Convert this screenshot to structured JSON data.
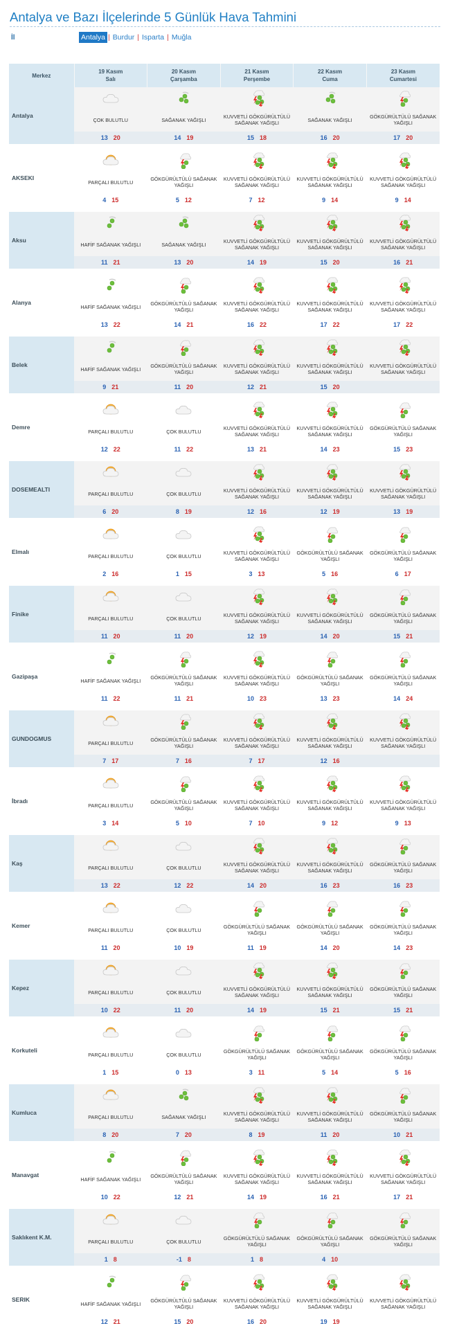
{
  "page_title": "Antalya ve Bazı İlçelerinde 5 Günlük Hava Tahmini",
  "il_label": "İl",
  "provinces": [
    "Antalya",
    "Burdur",
    "Isparta",
    "Muğla"
  ],
  "active_province": "Antalya",
  "table": {
    "merkez_header": "Merkez",
    "days": [
      {
        "date": "19 Kasım",
        "weekday": "Salı"
      },
      {
        "date": "20 Kasım",
        "weekday": "Çarşamba"
      },
      {
        "date": "21 Kasım",
        "weekday": "Perşembe"
      },
      {
        "date": "22 Kasım",
        "weekday": "Cuma"
      },
      {
        "date": "23 Kasım",
        "weekday": "Cumartesi"
      }
    ],
    "rows": [
      {
        "city": "Antalya",
        "forecast": [
          {
            "icon": "cloud-icon",
            "desc": "ÇOK BULUTLU",
            "low": "13",
            "high": "20"
          },
          {
            "icon": "shower-icon",
            "desc": "SAĞANAK YAĞIŞLI",
            "low": "14",
            "high": "19"
          },
          {
            "icon": "heavy-thunder-shower-icon",
            "desc": "KUVVETLİ GÖKGÜRÜLTÜLÜ SAĞANAK YAĞIŞLI",
            "low": "15",
            "high": "18"
          },
          {
            "icon": "shower-icon",
            "desc": "SAĞANAK YAĞIŞLI",
            "low": "16",
            "high": "20"
          },
          {
            "icon": "thunder-shower-icon",
            "desc": "GÖKGÜRÜLTÜLÜ SAĞANAK YAĞIŞLI",
            "low": "17",
            "high": "20"
          }
        ]
      },
      {
        "city": "AKSEKI",
        "forecast": [
          {
            "icon": "partly-cloudy-icon",
            "desc": "PARÇALI BULUTLU",
            "low": "4",
            "high": "15"
          },
          {
            "icon": "thunder-shower-icon",
            "desc": "GÖKGÜRÜLTÜLÜ SAĞANAK YAĞIŞLI",
            "low": "5",
            "high": "12"
          },
          {
            "icon": "heavy-thunder-shower-icon",
            "desc": "KUVVETLİ GÖKGÜRÜLTÜLÜ SAĞANAK YAĞIŞLI",
            "low": "7",
            "high": "12"
          },
          {
            "icon": "heavy-thunder-shower-icon",
            "desc": "KUVVETLİ GÖKGÜRÜLTÜLÜ SAĞANAK YAĞIŞLI",
            "low": "9",
            "high": "14"
          },
          {
            "icon": "heavy-thunder-shower-icon",
            "desc": "KUVVETLİ GÖKGÜRÜLTÜLÜ SAĞANAK YAĞIŞLI",
            "low": "9",
            "high": "14"
          }
        ]
      },
      {
        "city": "Aksu",
        "forecast": [
          {
            "icon": "light-shower-icon",
            "desc": "HAFİF SAĞANAK YAĞIŞLI",
            "low": "11",
            "high": "21"
          },
          {
            "icon": "shower-icon",
            "desc": "SAĞANAK YAĞIŞLI",
            "low": "13",
            "high": "20"
          },
          {
            "icon": "heavy-thunder-shower-icon",
            "desc": "KUVVETLİ GÖKGÜRÜLTÜLÜ SAĞANAK YAĞIŞLI",
            "low": "14",
            "high": "19"
          },
          {
            "icon": "heavy-thunder-shower-icon",
            "desc": "KUVVETLİ GÖKGÜRÜLTÜLÜ SAĞANAK YAĞIŞLI",
            "low": "15",
            "high": "20"
          },
          {
            "icon": "heavy-thunder-shower-icon",
            "desc": "KUVVETLİ GÖKGÜRÜLTÜLÜ SAĞANAK YAĞIŞLI",
            "low": "16",
            "high": "21"
          }
        ]
      },
      {
        "city": "Alanya",
        "forecast": [
          {
            "icon": "light-shower-icon",
            "desc": "HAFİF SAĞANAK YAĞIŞLI",
            "low": "13",
            "high": "22"
          },
          {
            "icon": "thunder-shower-icon",
            "desc": "GÖKGÜRÜLTÜLÜ SAĞANAK YAĞIŞLI",
            "low": "14",
            "high": "21"
          },
          {
            "icon": "heavy-thunder-shower-icon",
            "desc": "KUVVETLİ GÖKGÜRÜLTÜLÜ SAĞANAK YAĞIŞLI",
            "low": "16",
            "high": "22"
          },
          {
            "icon": "heavy-thunder-shower-icon",
            "desc": "KUVVETLİ GÖKGÜRÜLTÜLÜ SAĞANAK YAĞIŞLI",
            "low": "17",
            "high": "22"
          },
          {
            "icon": "heavy-thunder-shower-icon",
            "desc": "KUVVETLİ GÖKGÜRÜLTÜLÜ SAĞANAK YAĞIŞLI",
            "low": "17",
            "high": "22"
          }
        ]
      },
      {
        "city": "Belek",
        "forecast": [
          {
            "icon": "light-shower-icon",
            "desc": "HAFİF SAĞANAK YAĞIŞLI",
            "low": "9",
            "high": "21"
          },
          {
            "icon": "thunder-shower-icon",
            "desc": "GÖKGÜRÜLTÜLÜ SAĞANAK YAĞIŞLI",
            "low": "11",
            "high": "20"
          },
          {
            "icon": "heavy-thunder-shower-icon",
            "desc": "KUVVETLİ GÖKGÜRÜLTÜLÜ SAĞANAK YAĞIŞLI",
            "low": "12",
            "high": "21"
          },
          {
            "icon": "heavy-thunder-shower-icon",
            "desc": "KUVVETLİ GÖKGÜRÜLTÜLÜ SAĞANAK YAĞIŞLI",
            "low": "15",
            "high": "20"
          },
          {
            "icon": "heavy-thunder-shower-icon",
            "desc": "KUVVETLİ GÖKGÜRÜLTÜLÜ SAĞANAK YAĞIŞLI",
            "low": "",
            "high": ""
          }
        ]
      },
      {
        "city": "Demre",
        "forecast": [
          {
            "icon": "partly-cloudy-icon",
            "desc": "PARÇALI BULUTLU",
            "low": "12",
            "high": "22"
          },
          {
            "icon": "cloud-icon",
            "desc": "ÇOK BULUTLU",
            "low": "11",
            "high": "22"
          },
          {
            "icon": "heavy-thunder-shower-icon",
            "desc": "KUVVETLİ GÖKGÜRÜLTÜLÜ SAĞANAK YAĞIŞLI",
            "low": "13",
            "high": "21"
          },
          {
            "icon": "heavy-thunder-shower-icon",
            "desc": "KUVVETLİ GÖKGÜRÜLTÜLÜ SAĞANAK YAĞIŞLI",
            "low": "14",
            "high": "23"
          },
          {
            "icon": "thunder-shower-icon",
            "desc": "GÖKGÜRÜLTÜLÜ SAĞANAK YAĞIŞLI",
            "low": "15",
            "high": "23"
          }
        ]
      },
      {
        "city": "DOSEMEALTI",
        "forecast": [
          {
            "icon": "partly-cloudy-icon",
            "desc": "PARÇALI BULUTLU",
            "low": "6",
            "high": "20"
          },
          {
            "icon": "cloud-icon",
            "desc": "ÇOK BULUTLU",
            "low": "8",
            "high": "19"
          },
          {
            "icon": "heavy-thunder-shower-icon",
            "desc": "KUVVETLİ GÖKGÜRÜLTÜLÜ SAĞANAK YAĞIŞLI",
            "low": "12",
            "high": "16"
          },
          {
            "icon": "heavy-thunder-shower-icon",
            "desc": "KUVVETLİ GÖKGÜRÜLTÜLÜ SAĞANAK YAĞIŞLI",
            "low": "12",
            "high": "19"
          },
          {
            "icon": "heavy-thunder-shower-icon",
            "desc": "KUVVETLİ GÖKGÜRÜLTÜLÜ SAĞANAK YAĞIŞLI",
            "low": "13",
            "high": "19"
          }
        ]
      },
      {
        "city": "Elmalı",
        "forecast": [
          {
            "icon": "partly-cloudy-icon",
            "desc": "PARÇALI BULUTLU",
            "low": "2",
            "high": "16"
          },
          {
            "icon": "cloud-icon",
            "desc": "ÇOK BULUTLU",
            "low": "1",
            "high": "15"
          },
          {
            "icon": "heavy-thunder-shower-icon",
            "desc": "KUVVETLİ GÖKGÜRÜLTÜLÜ SAĞANAK YAĞIŞLI",
            "low": "3",
            "high": "13"
          },
          {
            "icon": "thunder-shower-icon",
            "desc": "GÖKGÜRÜLTÜLÜ SAĞANAK YAĞIŞLI",
            "low": "5",
            "high": "16"
          },
          {
            "icon": "thunder-shower-icon",
            "desc": "GÖKGÜRÜLTÜLÜ SAĞANAK YAĞIŞLI",
            "low": "6",
            "high": "17"
          }
        ]
      },
      {
        "city": "Finike",
        "forecast": [
          {
            "icon": "partly-cloudy-icon",
            "desc": "PARÇALI BULUTLU",
            "low": "11",
            "high": "20"
          },
          {
            "icon": "cloud-icon",
            "desc": "ÇOK BULUTLU",
            "low": "11",
            "high": "20"
          },
          {
            "icon": "heavy-thunder-shower-icon",
            "desc": "KUVVETLİ GÖKGÜRÜLTÜLÜ SAĞANAK YAĞIŞLI",
            "low": "12",
            "high": "19"
          },
          {
            "icon": "heavy-thunder-shower-icon",
            "desc": "KUVVETLİ GÖKGÜRÜLTÜLÜ SAĞANAK YAĞIŞLI",
            "low": "14",
            "high": "20"
          },
          {
            "icon": "thunder-shower-icon",
            "desc": "GÖKGÜRÜLTÜLÜ SAĞANAK YAĞIŞLI",
            "low": "15",
            "high": "21"
          }
        ]
      },
      {
        "city": "Gazipaşa",
        "forecast": [
          {
            "icon": "light-shower-icon",
            "desc": "HAFİF SAĞANAK YAĞIŞLI",
            "low": "11",
            "high": "22"
          },
          {
            "icon": "thunder-shower-icon",
            "desc": "GÖKGÜRÜLTÜLÜ SAĞANAK YAĞIŞLI",
            "low": "11",
            "high": "21"
          },
          {
            "icon": "heavy-thunder-shower-icon",
            "desc": "KUVVETLİ GÖKGÜRÜLTÜLÜ SAĞANAK YAĞIŞLI",
            "low": "10",
            "high": "23"
          },
          {
            "icon": "thunder-shower-icon",
            "desc": "GÖKGÜRÜLTÜLÜ SAĞANAK YAĞIŞLI",
            "low": "13",
            "high": "23"
          },
          {
            "icon": "thunder-shower-icon",
            "desc": "GÖKGÜRÜLTÜLÜ SAĞANAK YAĞIŞLI",
            "low": "14",
            "high": "24"
          }
        ]
      },
      {
        "city": "GUNDOGMUS",
        "forecast": [
          {
            "icon": "partly-cloudy-icon",
            "desc": "PARÇALI BULUTLU",
            "low": "7",
            "high": "17"
          },
          {
            "icon": "thunder-shower-icon",
            "desc": "GÖKGÜRÜLTÜLÜ SAĞANAK YAĞIŞLI",
            "low": "7",
            "high": "16"
          },
          {
            "icon": "heavy-thunder-shower-icon",
            "desc": "KUVVETLİ GÖKGÜRÜLTÜLÜ SAĞANAK YAĞIŞLI",
            "low": "7",
            "high": "17"
          },
          {
            "icon": "heavy-thunder-shower-icon",
            "desc": "KUVVETLİ GÖKGÜRÜLTÜLÜ SAĞANAK YAĞIŞLI",
            "low": "12",
            "high": "16"
          },
          {
            "icon": "heavy-thunder-shower-icon",
            "desc": "KUVVETLİ GÖKGÜRÜLTÜLÜ SAĞANAK YAĞIŞLI",
            "low": "",
            "high": ""
          }
        ]
      },
      {
        "city": "İbradı",
        "forecast": [
          {
            "icon": "partly-cloudy-icon",
            "desc": "PARÇALI BULUTLU",
            "low": "3",
            "high": "14"
          },
          {
            "icon": "thunder-shower-icon",
            "desc": "GÖKGÜRÜLTÜLÜ SAĞANAK YAĞIŞLI",
            "low": "5",
            "high": "10"
          },
          {
            "icon": "heavy-thunder-shower-icon",
            "desc": "KUVVETLİ GÖKGÜRÜLTÜLÜ SAĞANAK YAĞIŞLI",
            "low": "7",
            "high": "10"
          },
          {
            "icon": "heavy-thunder-shower-icon",
            "desc": "KUVVETLİ GÖKGÜRÜLTÜLÜ SAĞANAK YAĞIŞLI",
            "low": "9",
            "high": "12"
          },
          {
            "icon": "heavy-thunder-shower-icon",
            "desc": "KUVVETLİ GÖKGÜRÜLTÜLÜ SAĞANAK YAĞIŞLI",
            "low": "9",
            "high": "13"
          }
        ]
      },
      {
        "city": "Kaş",
        "forecast": [
          {
            "icon": "partly-cloudy-icon",
            "desc": "PARÇALI BULUTLU",
            "low": "13",
            "high": "22"
          },
          {
            "icon": "cloud-icon",
            "desc": "ÇOK BULUTLU",
            "low": "12",
            "high": "22"
          },
          {
            "icon": "heavy-thunder-shower-icon",
            "desc": "KUVVETLİ GÖKGÜRÜLTÜLÜ SAĞANAK YAĞIŞLI",
            "low": "14",
            "high": "20"
          },
          {
            "icon": "heavy-thunder-shower-icon",
            "desc": "KUVVETLİ GÖKGÜRÜLTÜLÜ SAĞANAK YAĞIŞLI",
            "low": "16",
            "high": "23"
          },
          {
            "icon": "thunder-shower-icon",
            "desc": "GÖKGÜRÜLTÜLÜ SAĞANAK YAĞIŞLI",
            "low": "16",
            "high": "23"
          }
        ]
      },
      {
        "city": "Kemer",
        "forecast": [
          {
            "icon": "partly-cloudy-icon",
            "desc": "PARÇALI BULUTLU",
            "low": "11",
            "high": "20"
          },
          {
            "icon": "cloud-icon",
            "desc": "ÇOK BULUTLU",
            "low": "10",
            "high": "19"
          },
          {
            "icon": "thunder-shower-icon",
            "desc": "GÖKGÜRÜLTÜLÜ SAĞANAK YAĞIŞLI",
            "low": "11",
            "high": "19"
          },
          {
            "icon": "thunder-shower-icon",
            "desc": "GÖKGÜRÜLTÜLÜ SAĞANAK YAĞIŞLI",
            "low": "14",
            "high": "20"
          },
          {
            "icon": "thunder-shower-icon",
            "desc": "GÖKGÜRÜLTÜLÜ SAĞANAK YAĞIŞLI",
            "low": "14",
            "high": "23"
          }
        ]
      },
      {
        "city": "Kepez",
        "forecast": [
          {
            "icon": "partly-cloudy-icon",
            "desc": "PARÇALI BULUTLU",
            "low": "10",
            "high": "22"
          },
          {
            "icon": "cloud-icon",
            "desc": "ÇOK BULUTLU",
            "low": "11",
            "high": "20"
          },
          {
            "icon": "heavy-thunder-shower-icon",
            "desc": "KUVVETLİ GÖKGÜRÜLTÜLÜ SAĞANAK YAĞIŞLI",
            "low": "14",
            "high": "19"
          },
          {
            "icon": "heavy-thunder-shower-icon",
            "desc": "KUVVETLİ GÖKGÜRÜLTÜLÜ SAĞANAK YAĞIŞLI",
            "low": "15",
            "high": "21"
          },
          {
            "icon": "thunder-shower-icon",
            "desc": "GÖKGÜRÜLTÜLÜ SAĞANAK YAĞIŞLI",
            "low": "15",
            "high": "21"
          }
        ]
      },
      {
        "city": "Korkuteli",
        "forecast": [
          {
            "icon": "partly-cloudy-icon",
            "desc": "PARÇALI BULUTLU",
            "low": "1",
            "high": "15"
          },
          {
            "icon": "cloud-icon",
            "desc": "ÇOK BULUTLU",
            "low": "0",
            "high": "13"
          },
          {
            "icon": "thunder-shower-icon",
            "desc": "GÖKGÜRÜLTÜLÜ SAĞANAK YAĞIŞLI",
            "low": "3",
            "high": "11"
          },
          {
            "icon": "thunder-shower-icon",
            "desc": "GÖKGÜRÜLTÜLÜ SAĞANAK YAĞIŞLI",
            "low": "5",
            "high": "14"
          },
          {
            "icon": "thunder-shower-icon",
            "desc": "GÖKGÜRÜLTÜLÜ SAĞANAK YAĞIŞLI",
            "low": "5",
            "high": "16"
          }
        ]
      },
      {
        "city": "Kumluca",
        "forecast": [
          {
            "icon": "partly-cloudy-icon",
            "desc": "PARÇALI BULUTLU",
            "low": "8",
            "high": "20"
          },
          {
            "icon": "shower-icon",
            "desc": "SAĞANAK YAĞIŞLI",
            "low": "7",
            "high": "20"
          },
          {
            "icon": "heavy-thunder-shower-icon",
            "desc": "KUVVETLİ GÖKGÜRÜLTÜLÜ SAĞANAK YAĞIŞLI",
            "low": "8",
            "high": "19"
          },
          {
            "icon": "heavy-thunder-shower-icon",
            "desc": "KUVVETLİ GÖKGÜRÜLTÜLÜ SAĞANAK YAĞIŞLI",
            "low": "11",
            "high": "20"
          },
          {
            "icon": "thunder-shower-icon",
            "desc": "GÖKGÜRÜLTÜLÜ SAĞANAK YAĞIŞLI",
            "low": "10",
            "high": "21"
          }
        ]
      },
      {
        "city": "Manavgat",
        "forecast": [
          {
            "icon": "light-shower-icon",
            "desc": "HAFİF SAĞANAK YAĞIŞLI",
            "low": "10",
            "high": "22"
          },
          {
            "icon": "thunder-shower-icon",
            "desc": "GÖKGÜRÜLTÜLÜ SAĞANAK YAĞIŞLI",
            "low": "12",
            "high": "21"
          },
          {
            "icon": "heavy-thunder-shower-icon",
            "desc": "KUVVETLİ GÖKGÜRÜLTÜLÜ SAĞANAK YAĞIŞLI",
            "low": "14",
            "high": "19"
          },
          {
            "icon": "heavy-thunder-shower-icon",
            "desc": "KUVVETLİ GÖKGÜRÜLTÜLÜ SAĞANAK YAĞIŞLI",
            "low": "16",
            "high": "21"
          },
          {
            "icon": "heavy-thunder-shower-icon",
            "desc": "KUVVETLİ GÖKGÜRÜLTÜLÜ SAĞANAK YAĞIŞLI",
            "low": "17",
            "high": "21"
          }
        ]
      },
      {
        "city": "Saklıkent K.M.",
        "forecast": [
          {
            "icon": "partly-cloudy-icon",
            "desc": "PARÇALI BULUTLU",
            "low": "1",
            "high": "8"
          },
          {
            "icon": "cloud-icon",
            "desc": "ÇOK BULUTLU",
            "low": "-1",
            "high": "8"
          },
          {
            "icon": "thunder-shower-icon",
            "desc": "GÖKGÜRÜLTÜLÜ SAĞANAK YAĞIŞLI",
            "low": "1",
            "high": "8"
          },
          {
            "icon": "thunder-shower-icon",
            "desc": "GÖKGÜRÜLTÜLÜ SAĞANAK YAĞIŞLI",
            "low": "4",
            "high": "10"
          },
          {
            "icon": "thunder-shower-icon",
            "desc": "GÖKGÜRÜLTÜLÜ SAĞANAK YAĞIŞLI",
            "low": "",
            "high": ""
          }
        ]
      },
      {
        "city": "SERIK",
        "forecast": [
          {
            "icon": "light-shower-icon",
            "desc": "HAFİF SAĞANAK YAĞIŞLI",
            "low": "12",
            "high": "21"
          },
          {
            "icon": "thunder-shower-icon",
            "desc": "GÖKGÜRÜLTÜLÜ SAĞANAK YAĞIŞLI",
            "low": "15",
            "high": "20"
          },
          {
            "icon": "heavy-thunder-shower-icon",
            "desc": "KUVVETLİ GÖKGÜRÜLTÜLÜ SAĞANAK YAĞIŞLI",
            "low": "16",
            "high": "20"
          },
          {
            "icon": "heavy-thunder-shower-icon",
            "desc": "KUVVETLİ GÖKGÜRÜLTÜLÜ SAĞANAK YAĞIŞLI",
            "low": "19",
            "high": "19"
          },
          {
            "icon": "heavy-thunder-shower-icon",
            "desc": "KUVVETLİ GÖKGÜRÜLTÜLÜ SAĞANAK YAĞIŞLI",
            "low": "",
            "high": ""
          }
        ]
      }
    ]
  },
  "colors": {
    "title": "#1f7fc4",
    "active_tab": "#1f79c6",
    "low_temp": "#2a62b3",
    "high_temp": "#cc2b2b",
    "header_bg": "#d8e8f2"
  }
}
